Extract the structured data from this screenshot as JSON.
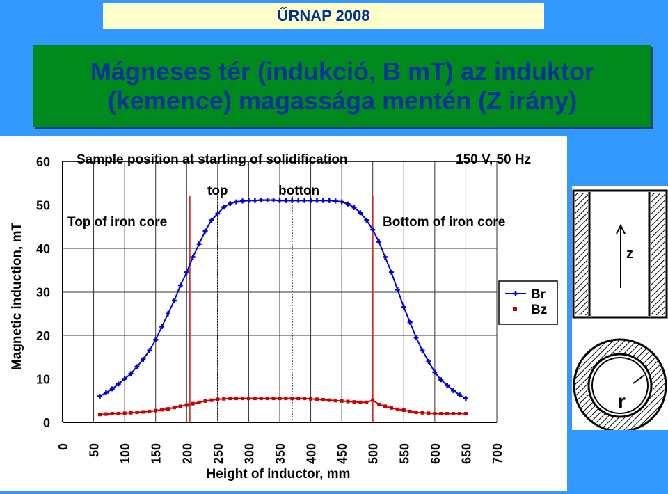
{
  "header": {
    "title": "ŰRNAP 2008"
  },
  "slide": {
    "title_line1": "Mágneses tér (indukció, B mT) az induktor",
    "title_line2": "(kemence) magassága mentén (Z irány)"
  },
  "chart_data": {
    "type": "line",
    "title": "Sample position at starting of solidification",
    "subtitle": "150 V, 50 Hz",
    "xlabel": "Height of inductor, mm",
    "ylabel": "Magnetic induction, mT",
    "xlim": [
      0,
      700
    ],
    "ylim": [
      0,
      60
    ],
    "x_ticks": [
      "0",
      "50",
      "100",
      "150",
      "200",
      "250",
      "300",
      "350",
      "400",
      "450",
      "500",
      "550",
      "600",
      "650",
      "700"
    ],
    "y_ticks": [
      "0",
      "10",
      "20",
      "30",
      "40",
      "50",
      "60"
    ],
    "grid": true,
    "legend_position": "right",
    "annotations": {
      "top_label": "top",
      "bottom_label": "botton",
      "top_iron_core": "Top of iron core",
      "bottom_iron_core": "Bottom of iron core"
    },
    "markers": {
      "iron_core_top_x": 205,
      "iron_core_bottom_x": 500,
      "sample_top_x": 250,
      "sample_bottom_x": 370
    },
    "series": [
      {
        "name": "Br",
        "color": "#0000cc",
        "x": [
          60,
          70,
          80,
          90,
          100,
          110,
          120,
          130,
          140,
          150,
          160,
          170,
          180,
          190,
          200,
          210,
          220,
          230,
          240,
          250,
          260,
          270,
          280,
          290,
          300,
          310,
          320,
          330,
          340,
          350,
          360,
          370,
          380,
          390,
          400,
          410,
          420,
          430,
          440,
          450,
          460,
          470,
          480,
          490,
          500,
          510,
          520,
          530,
          540,
          550,
          560,
          570,
          580,
          590,
          600,
          610,
          620,
          630,
          640,
          650
        ],
        "values": [
          6,
          6.8,
          7.7,
          8.8,
          10,
          11.2,
          12.8,
          14.5,
          16.5,
          19,
          22,
          25,
          28,
          31.5,
          34.5,
          38,
          41,
          44,
          46.5,
          48,
          49.5,
          50.3,
          50.7,
          50.9,
          51,
          51,
          51.1,
          51.1,
          51.1,
          51,
          51,
          51,
          51,
          51,
          51,
          51,
          51,
          51,
          50.9,
          50.7,
          50.2,
          49.4,
          48.2,
          46.5,
          44.3,
          41.5,
          38,
          34.5,
          30.5,
          26.5,
          23,
          19.5,
          16.5,
          14,
          11.5,
          9.8,
          8.5,
          7.3,
          6.3,
          5.5
        ]
      },
      {
        "name": "Bz",
        "color": "#cc0000",
        "x": [
          60,
          70,
          80,
          90,
          100,
          110,
          120,
          130,
          140,
          150,
          160,
          170,
          180,
          190,
          200,
          210,
          220,
          230,
          240,
          250,
          260,
          270,
          280,
          290,
          300,
          310,
          320,
          330,
          340,
          350,
          360,
          370,
          380,
          390,
          400,
          410,
          420,
          430,
          440,
          450,
          460,
          470,
          480,
          490,
          500,
          510,
          520,
          530,
          540,
          550,
          560,
          570,
          580,
          590,
          600,
          610,
          620,
          630,
          640,
          650
        ],
        "values": [
          1.8,
          1.9,
          2,
          2,
          2.1,
          2.2,
          2.3,
          2.4,
          2.5,
          2.7,
          2.9,
          3.1,
          3.4,
          3.7,
          4,
          4.3,
          4.6,
          4.9,
          5.1,
          5.3,
          5.4,
          5.5,
          5.5,
          5.5,
          5.5,
          5.5,
          5.5,
          5.5,
          5.5,
          5.5,
          5.5,
          5.5,
          5.5,
          5.5,
          5.4,
          5.3,
          5.2,
          5.1,
          5,
          4.9,
          4.8,
          4.7,
          4.6,
          4.6,
          5.1,
          4.1,
          3.7,
          3.3,
          3,
          2.8,
          2.5,
          2.3,
          2.2,
          2.1,
          2,
          2,
          2,
          2,
          2,
          2
        ]
      }
    ]
  },
  "inset": {
    "axis_label": "z",
    "radius_label": "r"
  },
  "colors": {
    "background": "#3399ff",
    "title_bg": "#008a1e",
    "title_text": "#003399",
    "header_bg": "#ffffcc"
  }
}
